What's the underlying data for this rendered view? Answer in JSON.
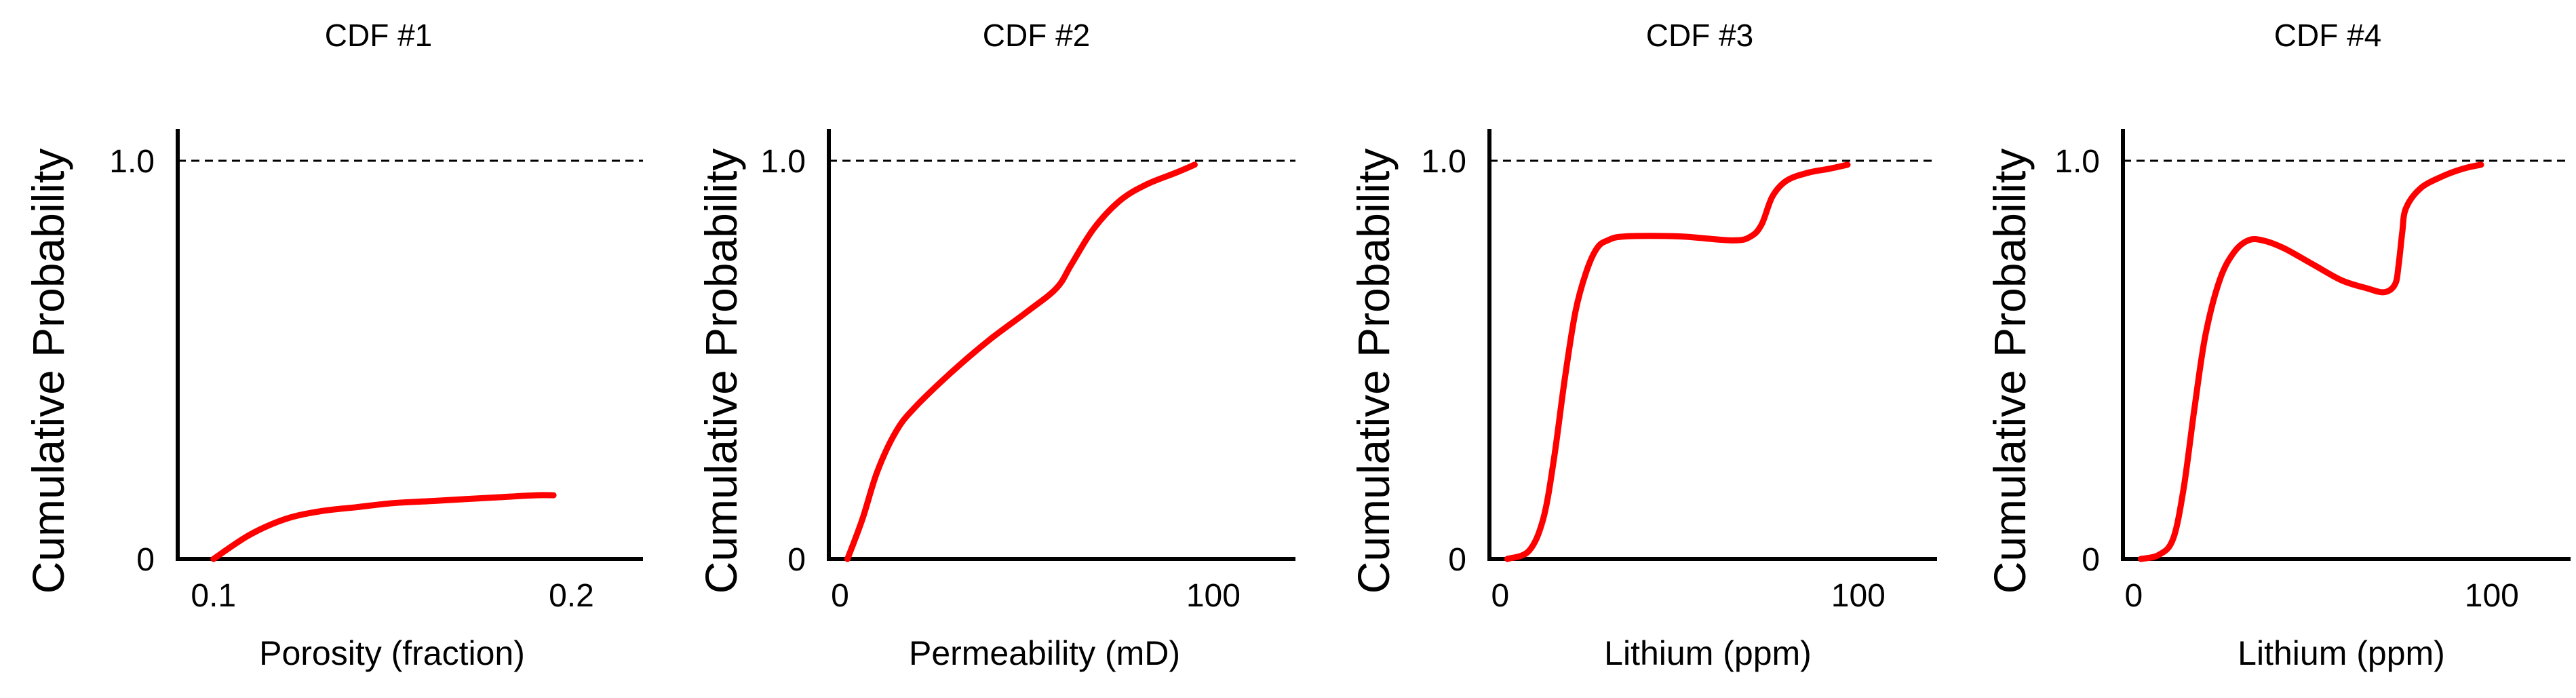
{
  "colors": {
    "curve": "#ff0000",
    "axis": "#000000",
    "reference": "#000000"
  },
  "chart_data": [
    {
      "type": "line",
      "title": "CDF #1",
      "xlabel": "Porosity (fraction)",
      "ylabel": "Cumulative Probability",
      "xlim": [
        0.09,
        0.22
      ],
      "ylim": [
        0,
        1.08
      ],
      "xticks": [
        {
          "value": 0.1,
          "label": "0.1"
        },
        {
          "value": 0.2,
          "label": "0.2"
        }
      ],
      "yticks": [
        {
          "value": 0,
          "label": "0"
        },
        {
          "value": 1.0,
          "label": "1.0"
        }
      ],
      "reference_line": 1.0,
      "grid": false,
      "series": [
        {
          "x": [
            0.1,
            0.11,
            0.12,
            0.13,
            0.14,
            0.15,
            0.16,
            0.17,
            0.18,
            0.19,
            0.195
          ],
          "y": [
            0,
            0.06,
            0.1,
            0.12,
            0.13,
            0.14,
            0.145,
            0.15,
            0.155,
            0.16,
            0.16
          ]
        }
      ]
    },
    {
      "type": "line",
      "title": "CDF #2",
      "xlabel": "Permeability (mD)",
      "ylabel": "Cumulative Probability",
      "xlim": [
        -3,
        122
      ],
      "ylim": [
        0,
        1.08
      ],
      "xticks": [
        {
          "value": 0,
          "label": "0"
        },
        {
          "value": 100,
          "label": "100"
        }
      ],
      "yticks": [
        {
          "value": 0,
          "label": "0"
        },
        {
          "value": 1.0,
          "label": "1.0"
        }
      ],
      "reference_line": 1.0,
      "grid": false,
      "series": [
        {
          "x": [
            2,
            6,
            10,
            15,
            20,
            30,
            40,
            50,
            58,
            62,
            68,
            75,
            82,
            90,
            95
          ],
          "y": [
            0,
            0.1,
            0.22,
            0.32,
            0.38,
            0.47,
            0.55,
            0.62,
            0.68,
            0.74,
            0.83,
            0.9,
            0.94,
            0.97,
            0.99
          ]
        }
      ]
    },
    {
      "type": "line",
      "title": "CDF #3",
      "xlabel": "Lithium (ppm)",
      "ylabel": "Cumulative Probability",
      "xlim": [
        -3,
        122
      ],
      "ylim": [
        0,
        1.08
      ],
      "xticks": [
        {
          "value": 0,
          "label": "0"
        },
        {
          "value": 100,
          "label": "100"
        }
      ],
      "yticks": [
        {
          "value": 0,
          "label": "0"
        },
        {
          "value": 1.0,
          "label": "1.0"
        }
      ],
      "reference_line": 1.0,
      "grid": false,
      "series": [
        {
          "x": [
            2,
            8,
            12,
            15,
            18,
            21,
            24,
            27,
            30,
            35,
            50,
            65,
            70,
            73,
            76,
            80,
            86,
            92,
            97
          ],
          "y": [
            0,
            0.02,
            0.1,
            0.25,
            0.45,
            0.62,
            0.72,
            0.78,
            0.8,
            0.81,
            0.81,
            0.8,
            0.81,
            0.84,
            0.91,
            0.95,
            0.97,
            0.98,
            0.99
          ]
        }
      ]
    },
    {
      "type": "line",
      "title": "CDF #4",
      "xlabel": "Lithium (ppm)",
      "ylabel": "Cumulative Probability",
      "xlim": [
        -3,
        122
      ],
      "ylim": [
        0,
        1.08
      ],
      "xticks": [
        {
          "value": 0,
          "label": "0"
        },
        {
          "value": 100,
          "label": "100"
        }
      ],
      "yticks": [
        {
          "value": 0,
          "label": "0"
        },
        {
          "value": 1.0,
          "label": "1.0"
        }
      ],
      "reference_line": 1.0,
      "grid": false,
      "series": [
        {
          "x": [
            2,
            7,
            11,
            14,
            17,
            20,
            24,
            28,
            32,
            36,
            42,
            50,
            58,
            65,
            70,
            73,
            74,
            75,
            76,
            80,
            86,
            92,
            97
          ],
          "y": [
            0,
            0.01,
            0.05,
            0.18,
            0.38,
            0.56,
            0.7,
            0.77,
            0.8,
            0.8,
            0.78,
            0.74,
            0.7,
            0.68,
            0.67,
            0.69,
            0.74,
            0.82,
            0.88,
            0.93,
            0.96,
            0.98,
            0.99
          ]
        }
      ]
    }
  ]
}
